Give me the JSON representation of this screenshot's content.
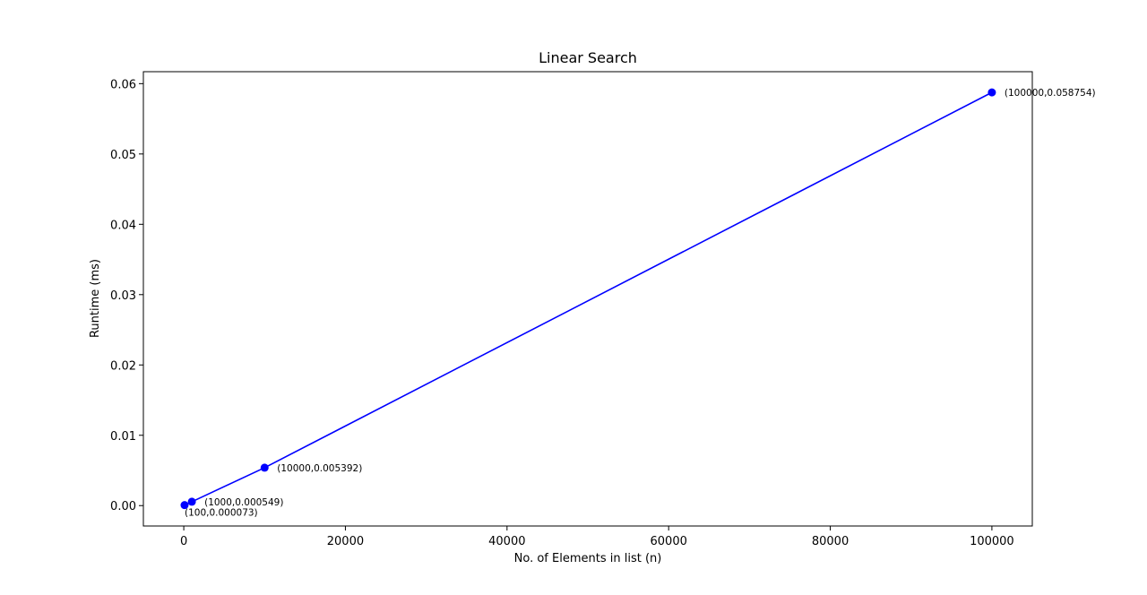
{
  "chart_data": {
    "type": "line",
    "title": "Linear Search",
    "xlabel": "No. of Elements in list (n)",
    "ylabel": "Runtime (ms)",
    "xlim": [
      -5000,
      105000
    ],
    "ylim": [
      -0.0029,
      0.0617
    ],
    "x_ticks": [
      0,
      20000,
      40000,
      60000,
      80000,
      100000
    ],
    "x_tick_labels": [
      "0",
      "20000",
      "40000",
      "60000",
      "80000",
      "100000"
    ],
    "y_ticks": [
      0.0,
      0.01,
      0.02,
      0.03,
      0.04,
      0.05,
      0.06
    ],
    "y_tick_labels": [
      "0.00",
      "0.01",
      "0.02",
      "0.03",
      "0.04",
      "0.05",
      "0.06"
    ],
    "grid": false,
    "series": [
      {
        "color": "#0000ff",
        "marker": "circle",
        "x": [
          100,
          1000,
          10000,
          100000
        ],
        "y": [
          7.3e-05,
          0.000549,
          0.005392,
          0.058754
        ],
        "labels": [
          "(100,0.000073)",
          "(1000,0.000549)",
          "(10000,0.005392)",
          "(100000,0.058754)"
        ]
      }
    ]
  }
}
